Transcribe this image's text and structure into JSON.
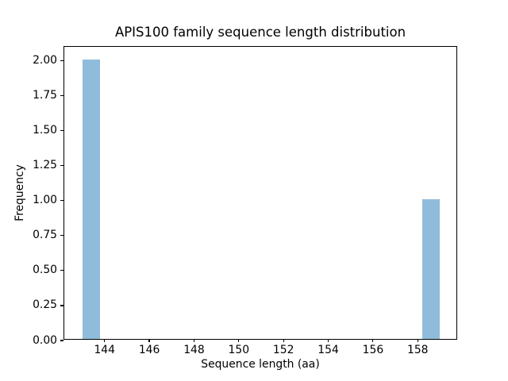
{
  "figure": {
    "background_color": "#ffffff",
    "axis_color": "#000000",
    "text_color": "#000000"
  },
  "chart_data": {
    "type": "bar",
    "subtype": "histogram",
    "title": "APIS100 family sequence length distribution",
    "xlabel": "Sequence length (aa)",
    "ylabel": "Frequency",
    "xlim": [
      142.2,
      159.8
    ],
    "ylim": [
      0,
      2.1
    ],
    "grid": false,
    "legend": null,
    "bar_color": "#90bcdb",
    "xticks": [
      {
        "value": 144,
        "label": "144"
      },
      {
        "value": 146,
        "label": "146"
      },
      {
        "value": 148,
        "label": "148"
      },
      {
        "value": 150,
        "label": "150"
      },
      {
        "value": 152,
        "label": "152"
      },
      {
        "value": 154,
        "label": "154"
      },
      {
        "value": 156,
        "label": "156"
      },
      {
        "value": 158,
        "label": "158"
      }
    ],
    "yticks": [
      {
        "value": 0.0,
        "label": "0.00"
      },
      {
        "value": 0.25,
        "label": "0.25"
      },
      {
        "value": 0.5,
        "label": "0.50"
      },
      {
        "value": 0.75,
        "label": "0.75"
      },
      {
        "value": 1.0,
        "label": "1.00"
      },
      {
        "value": 1.25,
        "label": "1.25"
      },
      {
        "value": 1.5,
        "label": "1.50"
      },
      {
        "value": 1.75,
        "label": "1.75"
      },
      {
        "value": 2.0,
        "label": "2.00"
      }
    ],
    "bars": [
      {
        "x_start": 143.0,
        "x_end": 143.8,
        "frequency": 2
      },
      {
        "x_start": 158.2,
        "x_end": 159.0,
        "frequency": 1
      }
    ]
  }
}
